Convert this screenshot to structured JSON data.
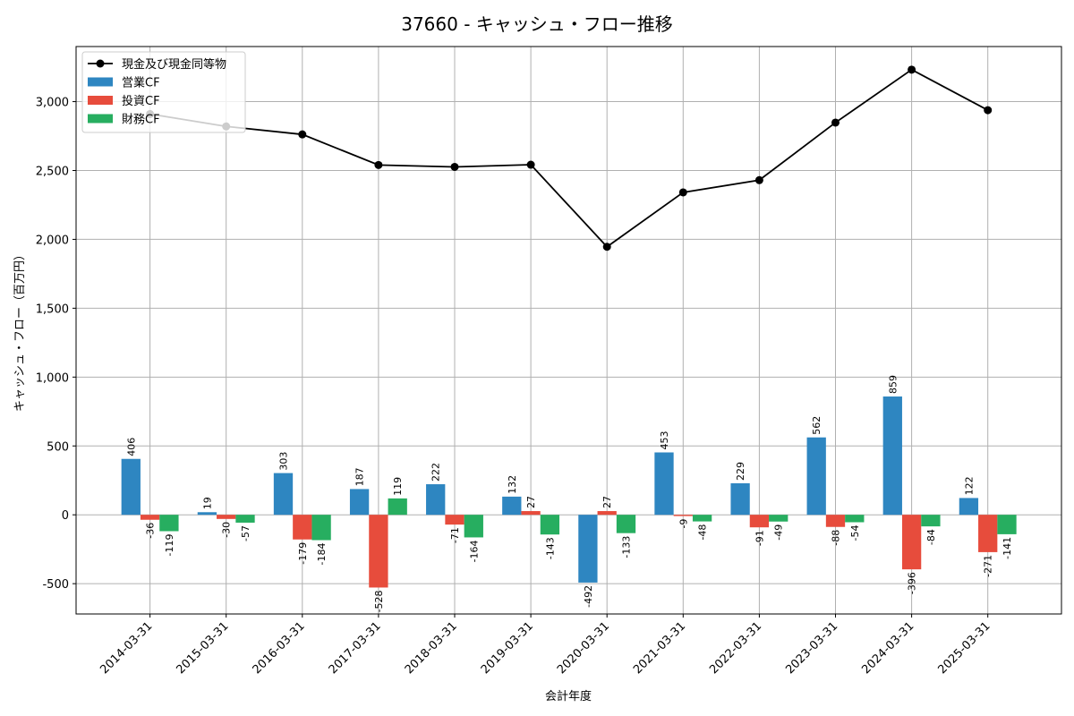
{
  "chart_data": {
    "type": "bar",
    "title": "37660 - キャッシュ・フロー推移",
    "xlabel": "会計年度",
    "ylabel": "キャッシュ・フロー（百万円）",
    "ylim": [
      -720,
      3400
    ],
    "yticks": [
      -500,
      0,
      500,
      1000,
      1500,
      2000,
      2500,
      3000
    ],
    "ytick_labels": [
      "-500",
      "0",
      "500",
      "1,000",
      "1,500",
      "2,000",
      "2,500",
      "3,000"
    ],
    "grid": true,
    "legend_position": "top-left",
    "categories": [
      "2014-03-31",
      "2015-03-31",
      "2016-03-31",
      "2017-03-31",
      "2018-03-31",
      "2019-03-31",
      "2020-03-31",
      "2021-03-31",
      "2022-03-31",
      "2023-03-31",
      "2024-03-31",
      "2025-03-31"
    ],
    "series": [
      {
        "name": "営業CF",
        "kind": "bar",
        "color": "#2e86c1",
        "values": [
          406,
          19,
          303,
          187,
          222,
          132,
          -492,
          453,
          229,
          562,
          859,
          122
        ]
      },
      {
        "name": "投資CF",
        "kind": "bar",
        "color": "#e74c3c",
        "values": [
          -36,
          -30,
          -179,
          -528,
          -71,
          27,
          27,
          -9,
          -91,
          -88,
          -396,
          -271
        ]
      },
      {
        "name": "財務CF",
        "kind": "bar",
        "color": "#27ae60",
        "values": [
          -119,
          -57,
          -184,
          119,
          -164,
          -143,
          -133,
          -48,
          -49,
          -54,
          -84,
          -141
        ]
      },
      {
        "name": "現金及び現金同等物",
        "kind": "line",
        "color": "#000000",
        "values": [
          2910,
          2820,
          2762,
          2540,
          2526,
          2542,
          1946,
          2341,
          2430,
          2848,
          3232,
          2938
        ]
      }
    ]
  }
}
